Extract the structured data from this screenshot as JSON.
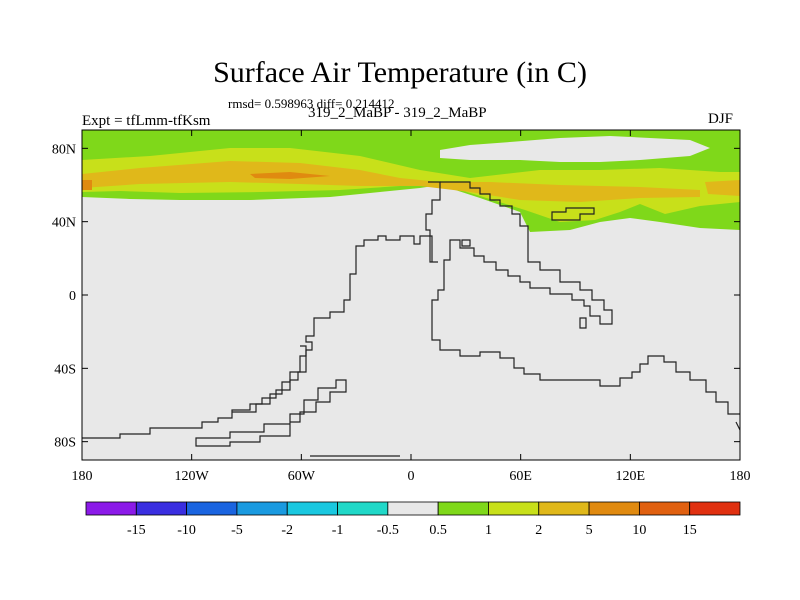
{
  "title": "Surface Air Temperature (in C)",
  "stats": "rmsd= 0.598963 diff= 0.214412",
  "left_label": "Expt = tfLmm-tfKsm",
  "center_label": "319_2_MaBP - 319_2_MaBP",
  "right_label": "DJF",
  "map": {
    "lon_range": [
      -180,
      180
    ],
    "lat_range": [
      -90,
      90
    ],
    "x_ticks": [
      {
        "lon": -180,
        "label": "180"
      },
      {
        "lon": -120,
        "label": "120W"
      },
      {
        "lon": -60,
        "label": "60W"
      },
      {
        "lon": 0,
        "label": "0"
      },
      {
        "lon": 60,
        "label": "60E"
      },
      {
        "lon": 120,
        "label": "120E"
      },
      {
        "lon": 180,
        "label": "180"
      }
    ],
    "y_ticks": [
      {
        "lat": 80,
        "label": "80N"
      },
      {
        "lat": 40,
        "label": "40N"
      },
      {
        "lat": 0,
        "label": "0"
      },
      {
        "lat": -40,
        "label": "40S"
      },
      {
        "lat": -80,
        "label": "80S"
      }
    ],
    "background_color": "#e8e8e8"
  },
  "colorbar": {
    "colors": [
      "#8b1ae8",
      "#3a2ee0",
      "#1a64e0",
      "#1a9ae0",
      "#1ac8e0",
      "#20d8c8",
      "#e8e8e8",
      "#7fd81a",
      "#c8e01a",
      "#e0b81a",
      "#e08a10",
      "#e06010",
      "#e03010"
    ],
    "labels": [
      "-15",
      "-10",
      "-5",
      "-2",
      "-1",
      "-0.5",
      "0.5",
      "1",
      "2",
      "5",
      "10",
      "15"
    ]
  }
}
